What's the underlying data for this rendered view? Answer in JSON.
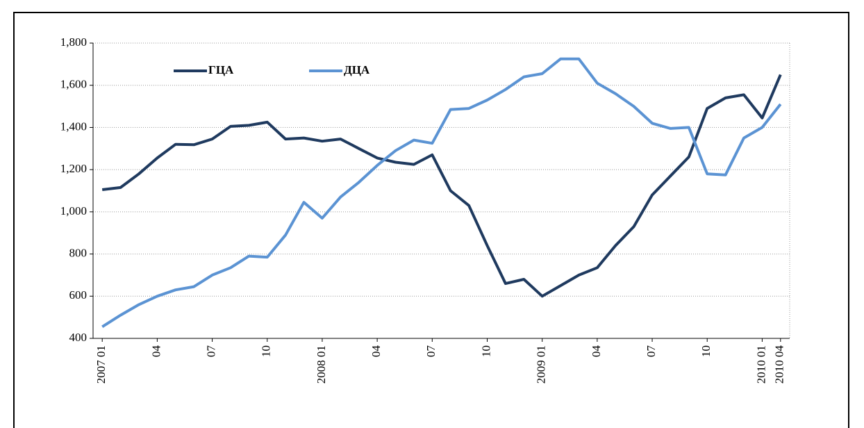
{
  "chart_data": {
    "type": "line",
    "categories": [
      "2007 01",
      null,
      null,
      "04",
      null,
      null,
      "07",
      null,
      null,
      "10",
      null,
      null,
      "2008 01",
      null,
      null,
      "04",
      null,
      null,
      "07",
      null,
      null,
      "10",
      null,
      null,
      "2009 01",
      null,
      null,
      "04",
      null,
      null,
      "07",
      null,
      null,
      "10",
      null,
      null,
      "2010 01",
      "2010 04"
    ],
    "series": [
      {
        "name": "ГЦА",
        "color": "#1f3a5f",
        "values": [
          1105,
          1115,
          1180,
          1255,
          1320,
          1318,
          1345,
          1405,
          1410,
          1425,
          1345,
          1350,
          1335,
          1345,
          1300,
          1255,
          1235,
          1225,
          1270,
          1100,
          1030,
          840,
          660,
          680,
          600,
          650,
          700,
          735,
          840,
          930,
          1080,
          1170,
          1260,
          1490,
          1540,
          1555,
          1445,
          1650
        ]
      },
      {
        "name": "ДЦА",
        "color": "#5b93d3",
        "values": [
          455,
          510,
          560,
          600,
          630,
          645,
          700,
          735,
          790,
          785,
          890,
          1045,
          970,
          1070,
          1140,
          1220,
          1290,
          1340,
          1325,
          1485,
          1490,
          1530,
          1580,
          1640,
          1655,
          1725,
          1725,
          1610,
          1560,
          1500,
          1420,
          1395,
          1400,
          1180,
          1175,
          1350,
          1400,
          1510
        ]
      }
    ],
    "ylim": [
      400,
      1800
    ],
    "yticks": [
      {
        "value": 400,
        "label": "400"
      },
      {
        "value": 600,
        "label": "600"
      },
      {
        "value": 800,
        "label": "800"
      },
      {
        "value": 1000,
        "label": "1,000"
      },
      {
        "value": 1200,
        "label": "1,200"
      },
      {
        "value": 1400,
        "label": "1,400"
      },
      {
        "value": 1600,
        "label": "1,600"
      },
      {
        "value": 1800,
        "label": "1,800"
      }
    ],
    "grid": true,
    "legend": "upper left"
  }
}
